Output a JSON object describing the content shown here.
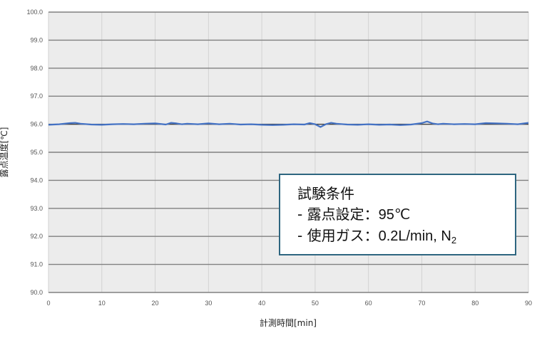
{
  "chart_data": {
    "type": "line",
    "title": "",
    "xlabel": "計測時間[min]",
    "ylabel": "露点温度[℃]",
    "xlim": [
      0,
      90
    ],
    "ylim": [
      90.0,
      100.0
    ],
    "x_ticks": [
      "0",
      "10",
      "20",
      "30",
      "40",
      "50",
      "60",
      "70",
      "80",
      "90"
    ],
    "y_ticks": [
      "90.0",
      "91.0",
      "92.0",
      "93.0",
      "94.0",
      "95.0",
      "96.0",
      "97.0",
      "98.0",
      "99.0",
      "100.0"
    ],
    "grid": true,
    "legend": "none",
    "plot_background": "#ececec",
    "grid_color": "#808080",
    "series": [
      {
        "color": "#4472c4",
        "x": [
          0,
          2,
          4,
          5,
          6,
          8,
          10,
          12,
          14,
          16,
          18,
          20,
          22,
          23,
          24,
          25,
          26,
          28,
          30,
          32,
          34,
          36,
          38,
          40,
          42,
          44,
          46,
          48,
          49,
          50,
          51,
          52,
          53,
          54,
          56,
          58,
          60,
          62,
          64,
          66,
          68,
          70,
          71,
          72,
          73,
          74,
          76,
          78,
          80,
          82,
          84,
          86,
          88,
          90
        ],
        "y": [
          95.98,
          96.0,
          96.04,
          96.05,
          96.02,
          95.99,
          95.98,
          96.0,
          96.01,
          96.0,
          96.02,
          96.03,
          95.99,
          96.05,
          96.03,
          96.0,
          96.02,
          96.0,
          96.03,
          96.0,
          96.02,
          95.99,
          96.0,
          95.98,
          95.97,
          95.98,
          96.0,
          95.99,
          96.04,
          96.0,
          95.9,
          96.0,
          96.05,
          96.02,
          95.99,
          95.98,
          96.0,
          95.98,
          95.99,
          95.97,
          95.99,
          96.04,
          96.1,
          96.03,
          96.0,
          96.02,
          96.0,
          96.01,
          96.0,
          96.04,
          96.03,
          96.02,
          96.0,
          96.05
        ]
      },
      {
        "color": "#404040",
        "x": [
          0,
          90
        ],
        "y": [
          96.0,
          96.0
        ]
      }
    ],
    "annotation": {
      "title": "試験条件",
      "line1_label": "- 露点設定：",
      "line1_value": "95℃",
      "line2_label": "- 使用ガス：",
      "line2_value": "0.2L/min, N",
      "line2_sub": "2",
      "border_color": "#2e6680"
    }
  }
}
